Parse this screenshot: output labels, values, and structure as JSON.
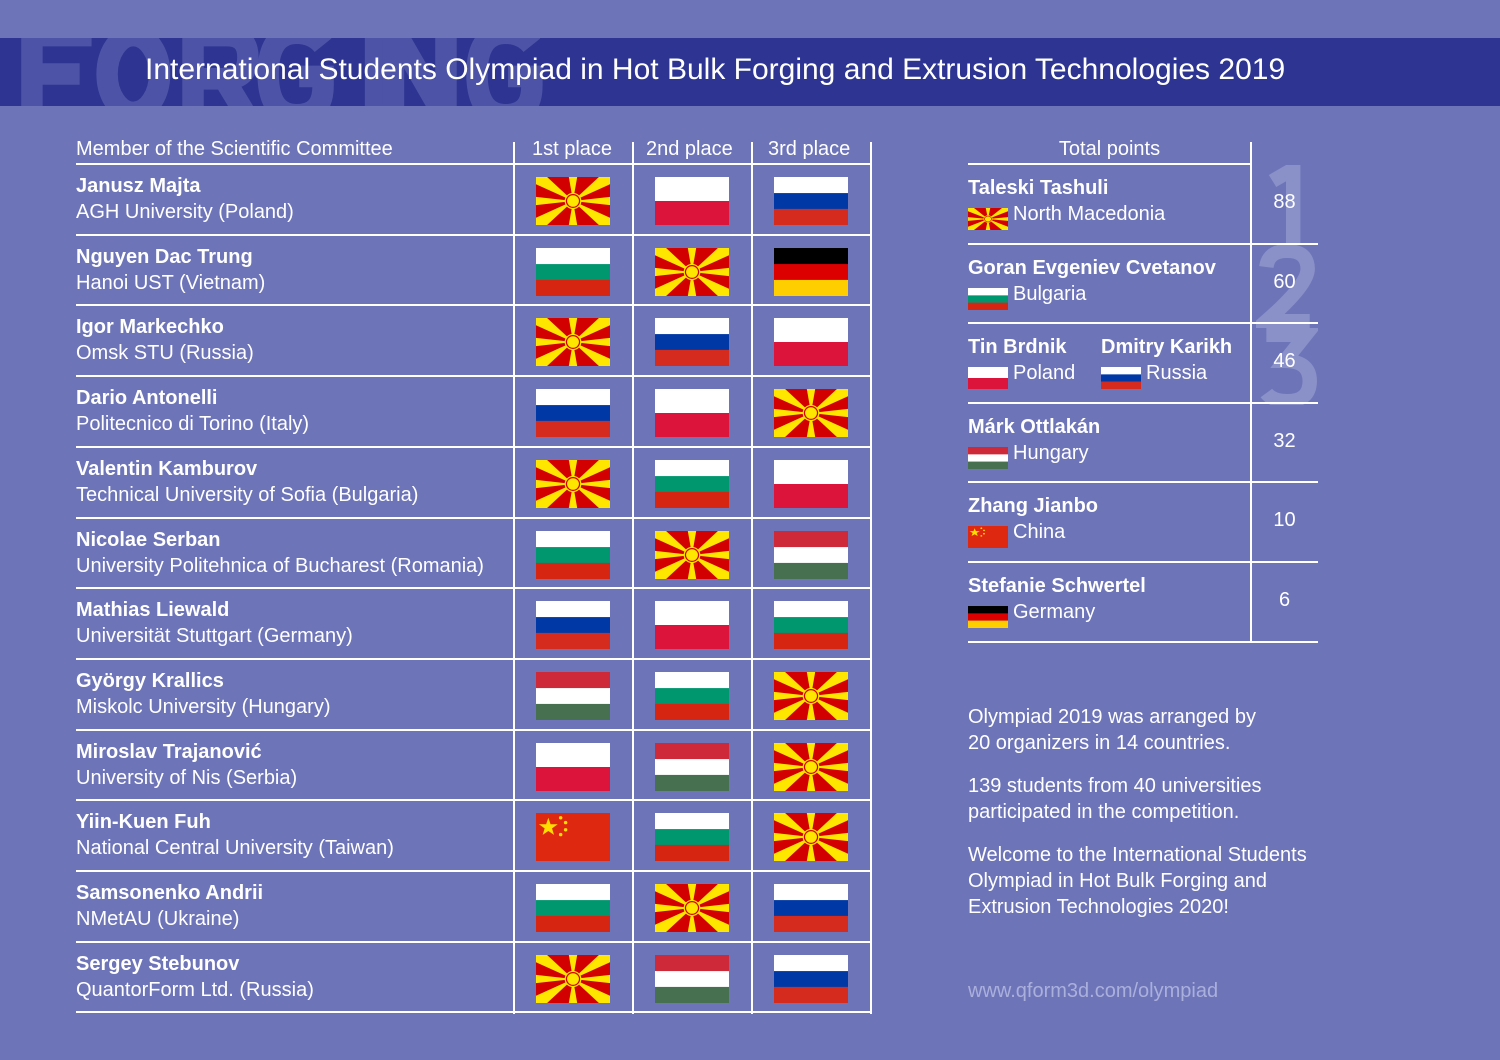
{
  "header": {
    "watermark": "FORGING",
    "title": "International Students Olympiad in Hot Bulk Forging and Extrusion Technologies 2019"
  },
  "table": {
    "headers": [
      "Member of the Scientific Committee",
      "1st place",
      "2nd place",
      "3rd place"
    ],
    "rows": [
      {
        "name": "Janusz Majta",
        "university": "AGH University (Poland)",
        "flags": [
          "North Macedonia",
          "Poland",
          "Russia"
        ]
      },
      {
        "name": "Nguyen Dac Trung",
        "university": "Hanoi UST (Vietnam)",
        "flags": [
          "Bulgaria",
          "North Macedonia",
          "Germany"
        ]
      },
      {
        "name": "Igor Markechko",
        "university": "Omsk STU (Russia)",
        "flags": [
          "North Macedonia",
          "Russia",
          "Poland"
        ]
      },
      {
        "name": "Dario Antonelli",
        "university": "Politecnico di Torino (Italy)",
        "flags": [
          "Russia",
          "Poland",
          "North Macedonia"
        ]
      },
      {
        "name": "Valentin Kamburov",
        "university": "Technical University of Sofia (Bulgaria)",
        "flags": [
          "North Macedonia",
          "Bulgaria",
          "Poland"
        ]
      },
      {
        "name": "Nicolae Serban",
        "university": "University Politehnica of Bucharest (Romania)",
        "flags": [
          "Bulgaria",
          "North Macedonia",
          "Hungary"
        ]
      },
      {
        "name": "Mathias Liewald",
        "university": "Universität Stuttgart (Germany)",
        "flags": [
          "Russia",
          "Poland",
          "Bulgaria"
        ]
      },
      {
        "name": "György Krallics",
        "university": "Miskolc University (Hungary)",
        "flags": [
          "Hungary",
          "Bulgaria",
          "North Macedonia"
        ]
      },
      {
        "name": "Miroslav Trajanović",
        "university": "University of Nis (Serbia)",
        "flags": [
          "Poland",
          "Hungary",
          "North Macedonia"
        ]
      },
      {
        "name": "Yiin-Kuen Fuh",
        "university": "National Central University (Taiwan)",
        "flags": [
          "China",
          "Bulgaria",
          "North Macedonia"
        ]
      },
      {
        "name": "Samsonenko Andrii",
        "university": "NMetAU (Ukraine)",
        "flags": [
          "Bulgaria",
          "North Macedonia",
          "Russia"
        ]
      },
      {
        "name": "Sergey Stebunov",
        "university": "QuantorForm Ltd. (Russia)",
        "flags": [
          "North Macedonia",
          "Hungary",
          "Russia"
        ]
      }
    ]
  },
  "totals": {
    "header": "Total points",
    "watermark": "123",
    "rows": [
      {
        "points": "88",
        "students": [
          {
            "name": "Taleski Tashuli",
            "country": "North Macedonia"
          }
        ]
      },
      {
        "points": "60",
        "students": [
          {
            "name": "Goran Evgeniev Cvetanov",
            "country": "Bulgaria"
          }
        ]
      },
      {
        "points": "46",
        "students": [
          {
            "name": "Tin Brdnik",
            "country": "Poland"
          },
          {
            "name": "Dmitry Karikh",
            "country": "Russia"
          }
        ]
      },
      {
        "points": "32",
        "students": [
          {
            "name": "Márk Ottlakán",
            "country": "Hungary"
          }
        ]
      },
      {
        "points": "10",
        "students": [
          {
            "name": "Zhang Jianbo",
            "country": "China"
          }
        ]
      },
      {
        "points": "6",
        "students": [
          {
            "name": "Stefanie Schwertel",
            "country": "Germany"
          }
        ]
      }
    ]
  },
  "info": [
    "Olympiad 2019 was arranged by 20 organizers in 14 countries.",
    "139 students from 40 universities participated in the competition.",
    "Welcome to the International Students Olympiad in Hot Bulk Forging and Extrusion Technologies 2020!"
  ],
  "url": "www.qform3d.com/olympiad",
  "colors": {
    "background": "#6d74b8",
    "header": "#2d3491"
  }
}
